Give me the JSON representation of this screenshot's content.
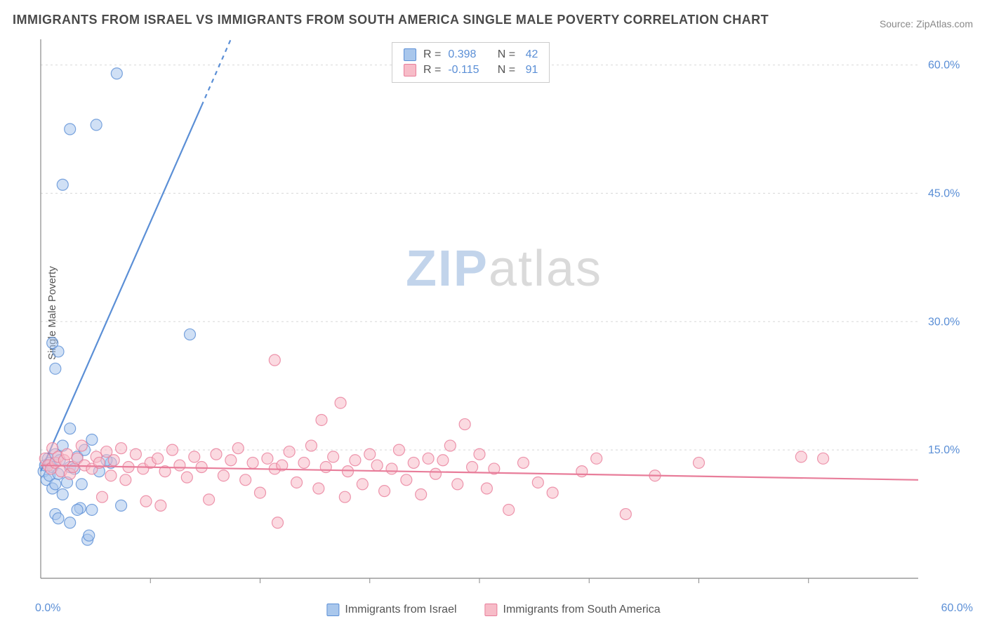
{
  "title": "IMMIGRANTS FROM ISRAEL VS IMMIGRANTS FROM SOUTH AMERICA SINGLE MALE POVERTY CORRELATION CHART",
  "source_label": "Source: ZipAtlas.com",
  "ylabel": "Single Male Poverty",
  "watermark_zip": "ZIP",
  "watermark_atlas": "atlas",
  "chart": {
    "type": "scatter-correlation",
    "xlim": [
      0,
      60
    ],
    "ylim": [
      0,
      63
    ],
    "x_min_label": "0.0%",
    "x_max_label": "60.0%",
    "y_ticks": [
      15.0,
      30.0,
      45.0,
      60.0
    ],
    "y_tick_labels": [
      "15.0%",
      "30.0%",
      "45.0%",
      "60.0%"
    ],
    "x_ticks": [
      7.5,
      15,
      22.5,
      30,
      37.5,
      45,
      52.5
    ],
    "grid_color": "#d8d8d8",
    "axis_color": "#888888",
    "background_color": "#ffffff",
    "marker_radius": 8,
    "marker_opacity": 0.55,
    "series": [
      {
        "id": "israel",
        "label": "Immigrants from Israel",
        "color_fill": "#a9c7ec",
        "color_stroke": "#5b8fd6",
        "R": "0.398",
        "N": "42",
        "trend": {
          "x1": 0,
          "y1": 12.5,
          "x2": 13,
          "y2": 63,
          "dash_after": 11,
          "stroke_width": 2.2
        },
        "points": [
          [
            0.2,
            12.5
          ],
          [
            0.3,
            13.2
          ],
          [
            0.4,
            11.5
          ],
          [
            0.5,
            14.0
          ],
          [
            0.6,
            12.0
          ],
          [
            0.6,
            13.5
          ],
          [
            0.8,
            10.5
          ],
          [
            0.8,
            13.0
          ],
          [
            1.0,
            11.0
          ],
          [
            1.0,
            14.5
          ],
          [
            1.2,
            12.2
          ],
          [
            1.3,
            13.8
          ],
          [
            1.5,
            9.8
          ],
          [
            1.5,
            15.5
          ],
          [
            1.8,
            11.2
          ],
          [
            2.0,
            13.0
          ],
          [
            2.0,
            17.5
          ],
          [
            2.3,
            12.8
          ],
          [
            2.5,
            14.2
          ],
          [
            2.7,
            8.2
          ],
          [
            2.8,
            11.0
          ],
          [
            3.2,
            4.5
          ],
          [
            3.3,
            5.0
          ],
          [
            3.5,
            8.0
          ],
          [
            1.0,
            7.5
          ],
          [
            1.2,
            7.0
          ],
          [
            2.0,
            6.5
          ],
          [
            2.5,
            8.0
          ],
          [
            1.0,
            24.5
          ],
          [
            1.2,
            26.5
          ],
          [
            0.8,
            27.5
          ],
          [
            5.5,
            8.5
          ],
          [
            4.8,
            13.5
          ],
          [
            1.5,
            46.0
          ],
          [
            2.0,
            52.5
          ],
          [
            3.8,
            53.0
          ],
          [
            5.2,
            59.0
          ],
          [
            10.2,
            28.5
          ],
          [
            3.0,
            15.0
          ],
          [
            3.5,
            16.2
          ],
          [
            4.0,
            12.5
          ],
          [
            4.5,
            13.8
          ]
        ]
      },
      {
        "id": "south_america",
        "label": "Immigrants from South America",
        "color_fill": "#f7bcc8",
        "color_stroke": "#e87d9a",
        "R": "-0.115",
        "N": "91",
        "trend": {
          "x1": 0,
          "y1": 13.2,
          "x2": 60,
          "y2": 11.5,
          "stroke_width": 2.2
        },
        "points": [
          [
            0.3,
            14.0
          ],
          [
            0.5,
            13.2
          ],
          [
            0.7,
            12.8
          ],
          [
            0.8,
            15.2
          ],
          [
            1.0,
            13.5
          ],
          [
            1.2,
            14.2
          ],
          [
            1.4,
            12.5
          ],
          [
            1.6,
            13.8
          ],
          [
            1.8,
            14.5
          ],
          [
            2.0,
            12.2
          ],
          [
            2.2,
            13.0
          ],
          [
            2.5,
            14.0
          ],
          [
            2.8,
            15.5
          ],
          [
            3.0,
            13.2
          ],
          [
            3.5,
            12.8
          ],
          [
            3.8,
            14.2
          ],
          [
            4.0,
            13.5
          ],
          [
            4.2,
            9.5
          ],
          [
            4.5,
            14.8
          ],
          [
            4.8,
            12.0
          ],
          [
            5.0,
            13.8
          ],
          [
            5.5,
            15.2
          ],
          [
            5.8,
            11.5
          ],
          [
            6.0,
            13.0
          ],
          [
            6.5,
            14.5
          ],
          [
            7.0,
            12.8
          ],
          [
            7.2,
            9.0
          ],
          [
            7.5,
            13.5
          ],
          [
            8.0,
            14.0
          ],
          [
            8.2,
            8.5
          ],
          [
            8.5,
            12.5
          ],
          [
            9.0,
            15.0
          ],
          [
            9.5,
            13.2
          ],
          [
            10.0,
            11.8
          ],
          [
            10.5,
            14.2
          ],
          [
            11.0,
            13.0
          ],
          [
            11.5,
            9.2
          ],
          [
            12.0,
            14.5
          ],
          [
            12.5,
            12.0
          ],
          [
            13.0,
            13.8
          ],
          [
            13.5,
            15.2
          ],
          [
            14.0,
            11.5
          ],
          [
            14.5,
            13.5
          ],
          [
            15.0,
            10.0
          ],
          [
            15.5,
            14.0
          ],
          [
            16.0,
            12.8
          ],
          [
            16.2,
            6.5
          ],
          [
            16.5,
            13.2
          ],
          [
            17.0,
            14.8
          ],
          [
            17.5,
            11.2
          ],
          [
            18.0,
            13.5
          ],
          [
            18.5,
            15.5
          ],
          [
            19.0,
            10.5
          ],
          [
            19.2,
            18.5
          ],
          [
            19.5,
            13.0
          ],
          [
            20.0,
            14.2
          ],
          [
            20.5,
            20.5
          ],
          [
            20.8,
            9.5
          ],
          [
            21.0,
            12.5
          ],
          [
            21.5,
            13.8
          ],
          [
            22.0,
            11.0
          ],
          [
            22.5,
            14.5
          ],
          [
            23.0,
            13.2
          ],
          [
            23.5,
            10.2
          ],
          [
            24.0,
            12.8
          ],
          [
            24.5,
            15.0
          ],
          [
            25.0,
            11.5
          ],
          [
            25.5,
            13.5
          ],
          [
            26.0,
            9.8
          ],
          [
            26.5,
            14.0
          ],
          [
            27.0,
            12.2
          ],
          [
            27.5,
            13.8
          ],
          [
            28.0,
            15.5
          ],
          [
            28.5,
            11.0
          ],
          [
            29.0,
            18.0
          ],
          [
            29.5,
            13.0
          ],
          [
            30.0,
            14.5
          ],
          [
            30.5,
            10.5
          ],
          [
            31.0,
            12.8
          ],
          [
            32.0,
            8.0
          ],
          [
            33.0,
            13.5
          ],
          [
            34.0,
            11.2
          ],
          [
            35.0,
            10.0
          ],
          [
            37.0,
            12.5
          ],
          [
            40.0,
            7.5
          ],
          [
            16.0,
            25.5
          ],
          [
            52.0,
            14.2
          ],
          [
            53.5,
            14.0
          ],
          [
            45.0,
            13.5
          ],
          [
            38.0,
            14.0
          ],
          [
            42.0,
            12.0
          ]
        ]
      }
    ]
  },
  "stats_box": {
    "R_label": "R =",
    "N_label": "N =",
    "value_color": "#5b8fd6"
  }
}
